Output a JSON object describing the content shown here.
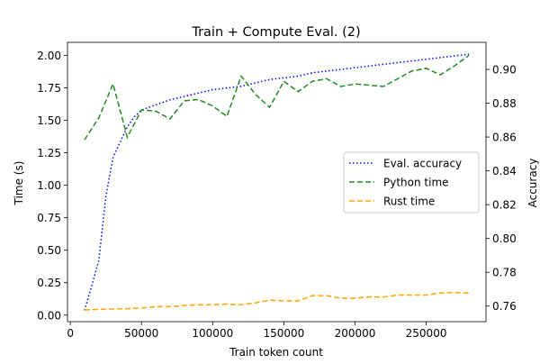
{
  "chart_data": {
    "type": "line",
    "title": "Train + Compute Eval. (2)",
    "xlabel": "Train token count",
    "ylabel": "Time (s)",
    "y2label": "Accuracy",
    "xlim": [
      -2000,
      292000
    ],
    "ylim": [
      -0.05,
      2.1
    ],
    "y2lim": [
      0.7508,
      0.916
    ],
    "xticks": [
      0,
      50000,
      100000,
      150000,
      200000,
      250000
    ],
    "xtick_labels": [
      "0",
      "50000",
      "100000",
      "150000",
      "200000",
      "250000"
    ],
    "yticks": [
      0.0,
      0.25,
      0.5,
      0.75,
      1.0,
      1.25,
      1.5,
      1.75,
      2.0
    ],
    "ytick_labels": [
      "0.00",
      "0.25",
      "0.50",
      "0.75",
      "1.00",
      "1.25",
      "1.50",
      "1.75",
      "2.00"
    ],
    "y2ticks": [
      0.76,
      0.78,
      0.8,
      0.82,
      0.84,
      0.86,
      0.88,
      0.9
    ],
    "y2tick_labels": [
      "0.76",
      "0.78",
      "0.80",
      "0.82",
      "0.84",
      "0.86",
      "0.88",
      "0.90"
    ],
    "grid": false,
    "legend_position": "center-right",
    "series": [
      {
        "name": "Eval. accuracy",
        "axis": "right",
        "color": "#0000ff",
        "style": "dotted",
        "x": [
          10000,
          15000,
          20000,
          25000,
          30000,
          35000,
          40000,
          45000,
          50000,
          60000,
          70000,
          80000,
          90000,
          100000,
          110000,
          120000,
          130000,
          140000,
          150000,
          160000,
          170000,
          180000,
          190000,
          200000,
          210000,
          220000,
          230000,
          240000,
          250000,
          260000,
          270000,
          280000
        ],
        "values": [
          0.7575,
          0.772,
          0.787,
          0.825,
          0.848,
          0.857,
          0.866,
          0.872,
          0.876,
          0.879,
          0.882,
          0.884,
          0.886,
          0.888,
          0.889,
          0.89,
          0.892,
          0.894,
          0.895,
          0.896,
          0.898,
          0.899,
          0.9,
          0.901,
          0.902,
          0.903,
          0.904,
          0.905,
          0.906,
          0.907,
          0.908,
          0.909
        ]
      },
      {
        "name": "Python time",
        "axis": "left",
        "color": "#228b22",
        "style": "dashed",
        "x": [
          10000,
          20000,
          30000,
          40000,
          50000,
          60000,
          70000,
          80000,
          90000,
          100000,
          110000,
          120000,
          130000,
          140000,
          150000,
          160000,
          170000,
          180000,
          190000,
          200000,
          210000,
          220000,
          230000,
          240000,
          250000,
          260000,
          270000,
          280000
        ],
        "values": [
          1.35,
          1.52,
          1.78,
          1.37,
          1.58,
          1.57,
          1.51,
          1.65,
          1.66,
          1.61,
          1.53,
          1.84,
          1.7,
          1.6,
          1.8,
          1.72,
          1.8,
          1.82,
          1.76,
          1.78,
          1.77,
          1.76,
          1.82,
          1.88,
          1.9,
          1.85,
          1.92,
          2.0
        ]
      },
      {
        "name": "Rust time",
        "axis": "left",
        "color": "#ffa500",
        "style": "dashed",
        "x": [
          10000,
          20000,
          30000,
          40000,
          50000,
          60000,
          70000,
          80000,
          90000,
          100000,
          110000,
          120000,
          130000,
          140000,
          150000,
          160000,
          170000,
          180000,
          190000,
          200000,
          210000,
          220000,
          230000,
          240000,
          250000,
          260000,
          270000,
          280000
        ],
        "values": [
          0.04,
          0.045,
          0.047,
          0.05,
          0.055,
          0.065,
          0.065,
          0.075,
          0.08,
          0.08,
          0.085,
          0.08,
          0.095,
          0.115,
          0.11,
          0.11,
          0.15,
          0.15,
          0.13,
          0.13,
          0.14,
          0.14,
          0.155,
          0.155,
          0.155,
          0.17,
          0.175,
          0.17
        ]
      }
    ]
  }
}
